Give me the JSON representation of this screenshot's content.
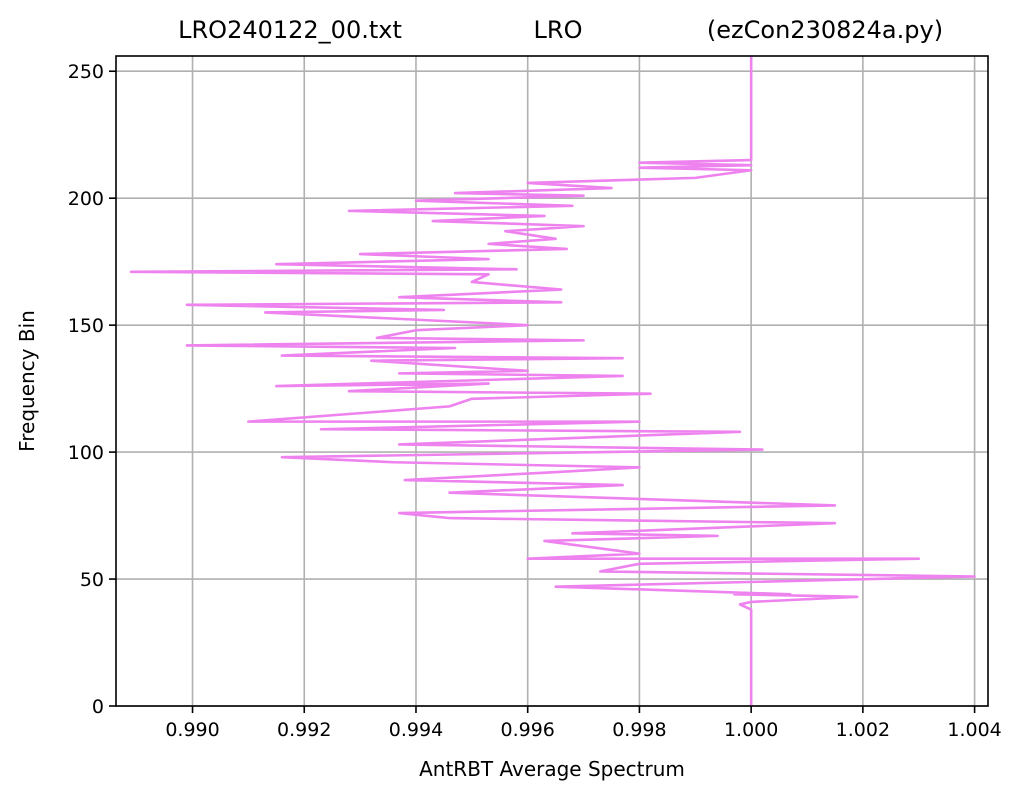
{
  "chart_data": {
    "type": "line",
    "title_left": "LRO240122_00.txt",
    "title_center": "LRO",
    "title_right": "(ezCon230824a.py)",
    "xlabel": "AntRBT Average Spectrum",
    "ylabel": "Frequency Bin",
    "xlim": [
      0.98863,
      1.00424
    ],
    "ylim": [
      0,
      256
    ],
    "xticks": [
      0.99,
      0.992,
      0.994,
      0.996,
      0.998,
      1.0,
      1.002,
      1.004
    ],
    "xtick_labels": [
      "0.990",
      "0.992",
      "0.994",
      "0.996",
      "0.998",
      "1.000",
      "1.002",
      "1.004"
    ],
    "yticks": [
      0,
      50,
      100,
      150,
      200,
      250
    ],
    "ytick_labels": [
      "0",
      "50",
      "100",
      "150",
      "200",
      "250"
    ],
    "grid": true,
    "color": "#ee82ee",
    "series": [
      {
        "points": [
          [
            1.0,
            0
          ],
          [
            1.0,
            38
          ],
          [
            0.9998,
            40
          ],
          [
            1.0,
            41
          ],
          [
            1.0019,
            43
          ],
          [
            0.9997,
            44
          ],
          [
            1.0007,
            44
          ],
          [
            0.9965,
            47
          ],
          [
            1.004,
            51
          ],
          [
            0.9973,
            53
          ],
          [
            0.998,
            56
          ],
          [
            1.003,
            58
          ],
          [
            0.996,
            58
          ],
          [
            0.998,
            60
          ],
          [
            0.9963,
            65
          ],
          [
            0.9994,
            67
          ],
          [
            0.9968,
            68
          ],
          [
            1.0015,
            72
          ],
          [
            0.9946,
            74
          ],
          [
            0.9937,
            76
          ],
          [
            1.0015,
            79
          ],
          [
            0.9946,
            84
          ],
          [
            0.9977,
            87
          ],
          [
            0.9938,
            89
          ],
          [
            0.9964,
            92
          ],
          [
            0.998,
            94
          ],
          [
            0.9936,
            96
          ],
          [
            0.9916,
            98
          ],
          [
            0.9945,
            99
          ],
          [
            1.0002,
            101
          ],
          [
            0.9937,
            103
          ],
          [
            0.9998,
            108
          ],
          [
            0.9923,
            109
          ],
          [
            0.998,
            112
          ],
          [
            0.991,
            112
          ],
          [
            0.9946,
            118
          ],
          [
            0.995,
            121
          ],
          [
            0.9982,
            123
          ],
          [
            0.9928,
            124
          ],
          [
            0.9953,
            127
          ],
          [
            0.9915,
            126
          ],
          [
            0.9977,
            130
          ],
          [
            0.9937,
            131
          ],
          [
            0.996,
            132
          ],
          [
            0.9932,
            136
          ],
          [
            0.9977,
            137
          ],
          [
            0.9916,
            138
          ],
          [
            0.9947,
            141
          ],
          [
            0.9899,
            142
          ],
          [
            0.997,
            144
          ],
          [
            0.9933,
            145
          ],
          [
            0.994,
            148
          ],
          [
            0.996,
            150
          ],
          [
            0.9932,
            153
          ],
          [
            0.9913,
            155
          ],
          [
            0.9945,
            156
          ],
          [
            0.9899,
            158
          ],
          [
            0.9966,
            159
          ],
          [
            0.9937,
            161
          ],
          [
            0.9966,
            164
          ],
          [
            0.995,
            167
          ],
          [
            0.9953,
            170
          ],
          [
            0.9889,
            171
          ],
          [
            0.9958,
            172
          ],
          [
            0.9915,
            174
          ],
          [
            0.9953,
            176
          ],
          [
            0.993,
            178
          ],
          [
            0.9967,
            180
          ],
          [
            0.9953,
            182
          ],
          [
            0.9965,
            184
          ],
          [
            0.9956,
            187
          ],
          [
            0.997,
            189
          ],
          [
            0.9943,
            191
          ],
          [
            0.9963,
            193
          ],
          [
            0.9928,
            195
          ],
          [
            0.9968,
            197
          ],
          [
            0.994,
            199
          ],
          [
            0.997,
            201
          ],
          [
            0.9947,
            202
          ],
          [
            0.9975,
            204
          ],
          [
            0.996,
            206
          ],
          [
            0.999,
            208
          ],
          [
            1.0,
            211
          ],
          [
            0.998,
            212
          ],
          [
            1.0,
            213
          ],
          [
            0.998,
            214
          ],
          [
            1.0,
            215
          ],
          [
            1.0,
            256
          ]
        ]
      }
    ]
  }
}
